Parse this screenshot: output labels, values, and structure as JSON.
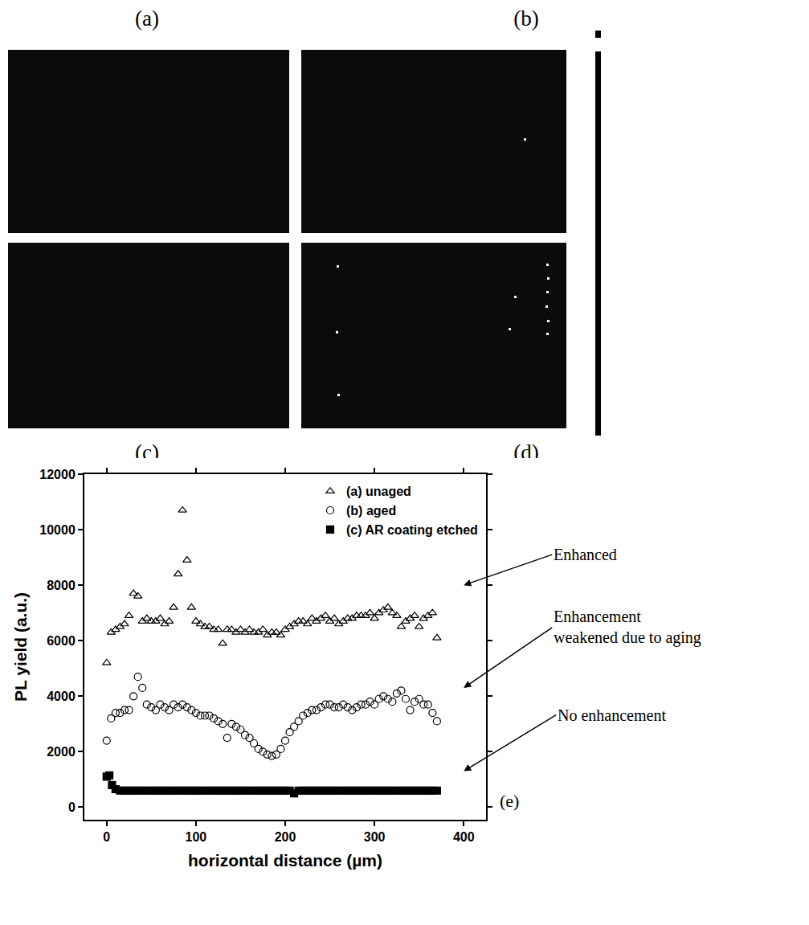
{
  "images": {
    "panels": [
      {
        "label": "(a)"
      },
      {
        "label": "(b)"
      },
      {
        "label": "(c)"
      },
      {
        "label": "(d)"
      }
    ]
  },
  "chart_data": {
    "type": "scatter",
    "panel_label": "(e)",
    "x_label": "horizontal distance (µm)",
    "y_label": "PL yield (a.u.)",
    "xlim": [
      -25,
      425
    ],
    "ylim": [
      -450,
      12000
    ],
    "xticks": [
      0,
      100,
      200,
      300,
      400
    ],
    "yticks": [
      0,
      2000,
      4000,
      6000,
      8000,
      10000,
      12000
    ],
    "grid": false,
    "legend": "top right",
    "series": [
      {
        "name": "(a) unaged",
        "marker": "triangle-up-open",
        "color": "#000000",
        "x": [
          0,
          5,
          10,
          15,
          20,
          25,
          30,
          35,
          40,
          45,
          50,
          55,
          60,
          65,
          70,
          75,
          80,
          85,
          90,
          95,
          100,
          105,
          110,
          115,
          120,
          125,
          130,
          135,
          140,
          145,
          150,
          155,
          160,
          165,
          170,
          175,
          180,
          185,
          190,
          195,
          200,
          205,
          210,
          215,
          220,
          225,
          230,
          235,
          240,
          245,
          250,
          255,
          260,
          265,
          270,
          275,
          280,
          285,
          290,
          295,
          300,
          305,
          310,
          315,
          320,
          325,
          330,
          335,
          340,
          345,
          350,
          355,
          360,
          365,
          370
        ],
        "values": [
          5200,
          6300,
          6400,
          6500,
          6600,
          6900,
          7700,
          7600,
          6700,
          6800,
          6700,
          6700,
          6800,
          6600,
          6700,
          7200,
          8400,
          10700,
          8900,
          7200,
          6700,
          6600,
          6500,
          6500,
          6400,
          6400,
          5900,
          6400,
          6400,
          6300,
          6400,
          6300,
          6400,
          6300,
          6300,
          6400,
          6200,
          6300,
          6300,
          6200,
          6400,
          6500,
          6600,
          6700,
          6700,
          6600,
          6800,
          6700,
          6800,
          6900,
          6700,
          6800,
          6600,
          6700,
          6800,
          6800,
          6900,
          6900,
          6900,
          7000,
          6800,
          7000,
          7100,
          7200,
          7000,
          6900,
          6500,
          6700,
          6800,
          6900,
          6500,
          6800,
          6900,
          7000,
          6100
        ]
      },
      {
        "name": "(b) aged",
        "marker": "circle-open",
        "color": "#000000",
        "x": [
          0,
          5,
          10,
          15,
          20,
          25,
          30,
          35,
          40,
          45,
          50,
          55,
          60,
          65,
          70,
          75,
          80,
          85,
          90,
          95,
          100,
          105,
          110,
          115,
          120,
          125,
          130,
          135,
          140,
          145,
          150,
          155,
          160,
          165,
          170,
          175,
          180,
          185,
          190,
          195,
          200,
          205,
          210,
          215,
          220,
          225,
          230,
          235,
          240,
          245,
          250,
          255,
          260,
          265,
          270,
          275,
          280,
          285,
          290,
          295,
          300,
          305,
          310,
          315,
          320,
          325,
          330,
          335,
          340,
          345,
          350,
          355,
          360,
          365,
          370
        ],
        "values": [
          2400,
          3200,
          3400,
          3400,
          3500,
          3500,
          4000,
          4700,
          4300,
          3700,
          3600,
          3500,
          3700,
          3600,
          3500,
          3700,
          3600,
          3700,
          3600,
          3500,
          3400,
          3300,
          3300,
          3300,
          3200,
          3100,
          3000,
          2500,
          3000,
          2900,
          2800,
          2600,
          2500,
          2300,
          2100,
          2000,
          1900,
          1850,
          1900,
          2100,
          2400,
          2700,
          2900,
          3100,
          3300,
          3400,
          3500,
          3500,
          3600,
          3700,
          3700,
          3600,
          3600,
          3700,
          3600,
          3500,
          3600,
          3700,
          3700,
          3800,
          3700,
          3900,
          4000,
          3900,
          3800,
          4100,
          4200,
          3900,
          3500,
          3800,
          3900,
          3700,
          3700,
          3400,
          3100
        ]
      },
      {
        "name": "(c) AR coating etched",
        "marker": "square",
        "color": "#000000",
        "x": [
          0,
          3,
          6,
          10,
          15,
          20,
          25,
          30,
          35,
          40,
          45,
          50,
          55,
          60,
          65,
          70,
          75,
          80,
          85,
          90,
          95,
          100,
          105,
          110,
          115,
          120,
          125,
          130,
          135,
          140,
          145,
          150,
          155,
          160,
          165,
          170,
          175,
          180,
          185,
          190,
          195,
          200,
          205,
          210,
          215,
          220,
          225,
          230,
          235,
          240,
          245,
          250,
          255,
          260,
          265,
          270,
          275,
          280,
          285,
          290,
          295,
          300,
          305,
          310,
          315,
          320,
          325,
          330,
          335,
          340,
          345,
          350,
          355,
          360,
          365,
          370
        ],
        "values": [
          1100,
          1150,
          800,
          650,
          600,
          600,
          600,
          600,
          600,
          600,
          600,
          600,
          600,
          600,
          600,
          600,
          600,
          600,
          600,
          600,
          600,
          600,
          600,
          600,
          600,
          600,
          600,
          600,
          600,
          600,
          600,
          600,
          600,
          600,
          600,
          600,
          600,
          600,
          600,
          600,
          600,
          600,
          600,
          500,
          600,
          600,
          600,
          600,
          600,
          600,
          600,
          600,
          600,
          600,
          600,
          600,
          600,
          600,
          600,
          600,
          600,
          600,
          600,
          600,
          600,
          600,
          600,
          600,
          600,
          600,
          600,
          600,
          600,
          600,
          600,
          600
        ]
      }
    ],
    "annotations": [
      {
        "text": "Enhanced",
        "x": 400,
        "y": 8000
      },
      {
        "text": "Enhancement\nweakened due to aging",
        "x": 400,
        "y": 4300
      },
      {
        "text": "No enhancement",
        "x": 400,
        "y": 1300
      }
    ]
  }
}
